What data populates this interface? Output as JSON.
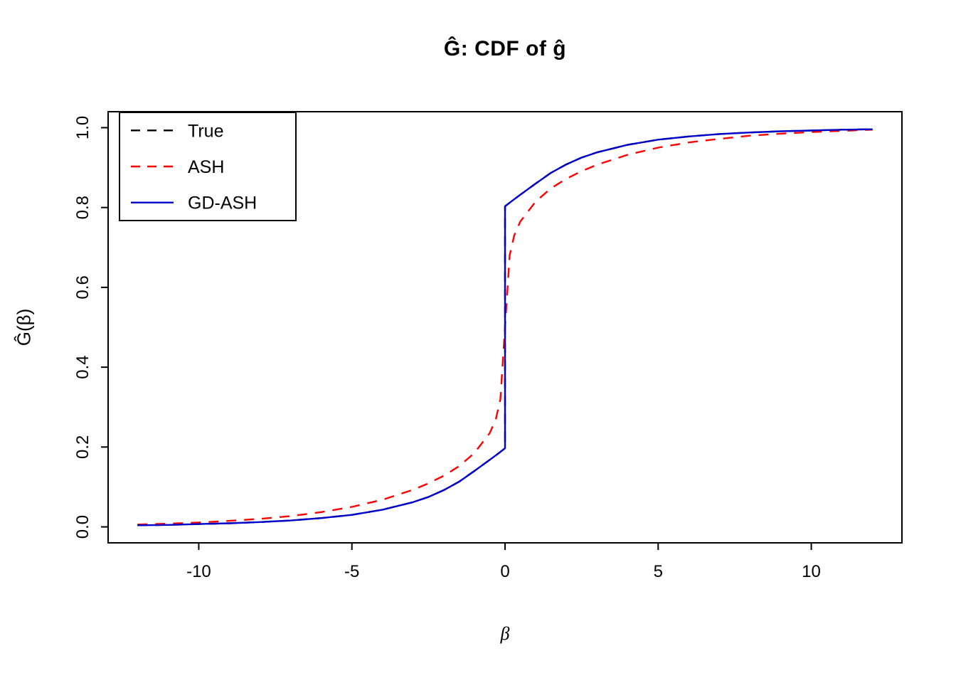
{
  "figure": {
    "title": "Ĝ: CDF of ĝ",
    "xlabel": "β",
    "ylabel": "Ĝ(β)"
  },
  "chart_data": {
    "type": "line",
    "title": "Ĝ: CDF of ĝ",
    "xlabel": "β",
    "ylabel": "Ĝ(β)",
    "xlim": [
      -12.96,
      12.96
    ],
    "ylim": [
      -0.04,
      1.04
    ],
    "grid": false,
    "xticks": [
      -10,
      -5,
      0,
      5,
      10
    ],
    "xtick_labels": [
      "-10",
      "-5",
      "0",
      "5",
      "10"
    ],
    "yticks": [
      0.0,
      0.2,
      0.4,
      0.6,
      0.8,
      1.0
    ],
    "ytick_labels": [
      "0.0",
      "0.2",
      "0.4",
      "0.6",
      "0.8",
      "1.0"
    ],
    "colors": {
      "axis": "#000000",
      "true": "#000000",
      "ash": "#FF0000",
      "gdash": "#0000CC"
    },
    "legend": {
      "position": "top-left",
      "entries": [
        {
          "label": "True",
          "color": "#000000",
          "dashed": true
        },
        {
          "label": "ASH",
          "color": "#FF0000",
          "dashed": true
        },
        {
          "label": "GD-ASH",
          "color": "#0000CC",
          "dashed": false
        }
      ]
    },
    "series": [
      {
        "name": "True",
        "color": "#000000",
        "dashed": true,
        "note": "true mixture CDF with point mass ~0.6 at beta=0; jumps from 0.197 to 0.803",
        "points": [
          [
            -12,
            0.004
          ],
          [
            -11,
            0.005
          ],
          [
            -10,
            0.007
          ],
          [
            -9,
            0.009
          ],
          [
            -8,
            0.012
          ],
          [
            -7,
            0.016
          ],
          [
            -6,
            0.022
          ],
          [
            -5,
            0.03
          ],
          [
            -4,
            0.043
          ],
          [
            -3,
            0.062
          ],
          [
            -2.5,
            0.075
          ],
          [
            -2,
            0.092
          ],
          [
            -1.5,
            0.113
          ],
          [
            -1,
            0.14
          ],
          [
            -0.5,
            0.168
          ],
          [
            -0.2,
            0.185
          ],
          [
            0,
            0.197
          ],
          [
            0,
            0.803
          ],
          [
            0.2,
            0.815
          ],
          [
            0.5,
            0.832
          ],
          [
            1,
            0.86
          ],
          [
            1.5,
            0.887
          ],
          [
            2,
            0.908
          ],
          [
            2.5,
            0.925
          ],
          [
            3,
            0.938
          ],
          [
            4,
            0.957
          ],
          [
            5,
            0.97
          ],
          [
            6,
            0.978
          ],
          [
            7,
            0.984
          ],
          [
            8,
            0.988
          ],
          [
            9,
            0.991
          ],
          [
            10,
            0.993
          ],
          [
            11,
            0.995
          ],
          [
            12,
            0.996
          ]
        ]
      },
      {
        "name": "ASH",
        "color": "#FF0000",
        "dashed": true,
        "note": "smooth ASH estimate, steep but continuous rise through beta=0",
        "points": [
          [
            -12,
            0.006
          ],
          [
            -11,
            0.008
          ],
          [
            -10,
            0.011
          ],
          [
            -9,
            0.015
          ],
          [
            -8,
            0.02
          ],
          [
            -7,
            0.027
          ],
          [
            -6,
            0.037
          ],
          [
            -5,
            0.05
          ],
          [
            -4,
            0.068
          ],
          [
            -3,
            0.093
          ],
          [
            -2.5,
            0.109
          ],
          [
            -2,
            0.128
          ],
          [
            -1.5,
            0.152
          ],
          [
            -1,
            0.185
          ],
          [
            -0.5,
            0.235
          ],
          [
            -0.3,
            0.27
          ],
          [
            -0.15,
            0.32
          ],
          [
            0,
            0.5
          ],
          [
            0.15,
            0.68
          ],
          [
            0.3,
            0.73
          ],
          [
            0.5,
            0.765
          ],
          [
            1,
            0.815
          ],
          [
            1.5,
            0.848
          ],
          [
            2,
            0.872
          ],
          [
            2.5,
            0.891
          ],
          [
            3,
            0.907
          ],
          [
            4,
            0.932
          ],
          [
            5,
            0.95
          ],
          [
            6,
            0.963
          ],
          [
            7,
            0.972
          ],
          [
            8,
            0.98
          ],
          [
            9,
            0.985
          ],
          [
            10,
            0.989
          ],
          [
            11,
            0.992
          ],
          [
            12,
            0.995
          ]
        ]
      },
      {
        "name": "GD-ASH",
        "color": "#0000CC",
        "dashed": false,
        "note": "GD-ASH estimate, overlaps True curve including jump at 0",
        "points": [
          [
            -12,
            0.004
          ],
          [
            -11,
            0.005
          ],
          [
            -10,
            0.007
          ],
          [
            -9,
            0.009
          ],
          [
            -8,
            0.012
          ],
          [
            -7,
            0.016
          ],
          [
            -6,
            0.022
          ],
          [
            -5,
            0.03
          ],
          [
            -4,
            0.043
          ],
          [
            -3,
            0.062
          ],
          [
            -2.5,
            0.075
          ],
          [
            -2,
            0.092
          ],
          [
            -1.5,
            0.113
          ],
          [
            -1,
            0.14
          ],
          [
            -0.5,
            0.168
          ],
          [
            -0.2,
            0.185
          ],
          [
            0,
            0.197
          ],
          [
            0,
            0.803
          ],
          [
            0.2,
            0.815
          ],
          [
            0.5,
            0.832
          ],
          [
            1,
            0.86
          ],
          [
            1.5,
            0.887
          ],
          [
            2,
            0.908
          ],
          [
            2.5,
            0.925
          ],
          [
            3,
            0.938
          ],
          [
            4,
            0.957
          ],
          [
            5,
            0.97
          ],
          [
            6,
            0.978
          ],
          [
            7,
            0.984
          ],
          [
            8,
            0.988
          ],
          [
            9,
            0.991
          ],
          [
            10,
            0.993
          ],
          [
            11,
            0.995
          ],
          [
            12,
            0.996
          ]
        ]
      }
    ]
  }
}
